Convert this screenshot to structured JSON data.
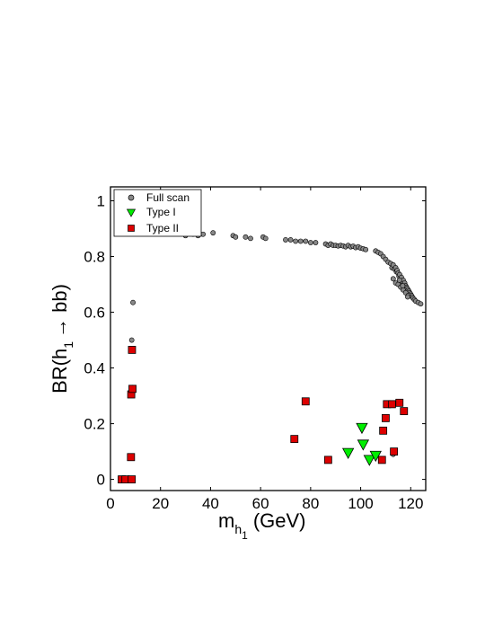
{
  "chart_data": {
    "type": "scatter",
    "xlabel": "m",
    "xlabel_sub": "h",
    "xlabel_subsub": "1",
    "xlabel_unit": "(GeV)",
    "ylabel_pre": "BR(h",
    "ylabel_sub": "1",
    "ylabel_post": "→ bb)",
    "xlim": [
      0,
      126
    ],
    "ylim": [
      -0.04,
      1.05
    ],
    "x_ticks": [
      0,
      20,
      40,
      60,
      80,
      100,
      120
    ],
    "y_ticks": [
      0,
      0.2,
      0.4,
      0.6,
      0.8,
      1
    ],
    "x_tick_labels": [
      "0",
      "20",
      "40",
      "60",
      "80",
      "100",
      "120"
    ],
    "y_tick_labels": [
      "0",
      "0.2",
      "0.4",
      "0.6",
      "0.8",
      "1"
    ],
    "grid": false,
    "legend_position": "top-left",
    "series": [
      {
        "name": "Full scan",
        "marker": "circle",
        "color": "#888888",
        "points": [
          [
            9,
            0.635
          ],
          [
            8.5,
            0.5
          ],
          [
            8.7,
            0.33
          ],
          [
            8.2,
            0.31
          ],
          [
            30,
            0.875
          ],
          [
            33,
            0.88
          ],
          [
            35,
            0.875
          ],
          [
            37,
            0.88
          ],
          [
            41,
            0.885
          ],
          [
            49,
            0.875
          ],
          [
            50,
            0.87
          ],
          [
            54,
            0.87
          ],
          [
            56,
            0.865
          ],
          [
            61,
            0.87
          ],
          [
            62,
            0.865
          ],
          [
            70,
            0.86
          ],
          [
            72,
            0.86
          ],
          [
            74,
            0.855
          ],
          [
            76,
            0.855
          ],
          [
            78,
            0.855
          ],
          [
            80,
            0.85
          ],
          [
            82,
            0.85
          ],
          [
            86,
            0.845
          ],
          [
            87,
            0.84
          ],
          [
            88,
            0.845
          ],
          [
            89,
            0.84
          ],
          [
            90,
            0.84
          ],
          [
            91,
            0.838
          ],
          [
            92,
            0.84
          ],
          [
            93,
            0.838
          ],
          [
            94,
            0.835
          ],
          [
            95,
            0.84
          ],
          [
            96,
            0.835
          ],
          [
            97,
            0.837
          ],
          [
            98,
            0.832
          ],
          [
            99,
            0.835
          ],
          [
            100,
            0.83
          ],
          [
            101,
            0.828
          ],
          [
            102,
            0.825
          ],
          [
            106,
            0.82
          ],
          [
            107,
            0.815
          ],
          [
            108,
            0.81
          ],
          [
            109,
            0.8
          ],
          [
            110,
            0.79
          ],
          [
            111,
            0.78
          ],
          [
            112,
            0.775
          ],
          [
            112.5,
            0.76
          ],
          [
            113,
            0.77
          ],
          [
            113.5,
            0.755
          ],
          [
            114,
            0.76
          ],
          [
            114.3,
            0.745
          ],
          [
            114.6,
            0.75
          ],
          [
            115,
            0.74
          ],
          [
            115.3,
            0.73
          ],
          [
            115.6,
            0.735
          ],
          [
            116,
            0.72
          ],
          [
            116.3,
            0.725
          ],
          [
            116.6,
            0.71
          ],
          [
            117,
            0.715
          ],
          [
            117.3,
            0.7
          ],
          [
            117.6,
            0.705
          ],
          [
            118,
            0.695
          ],
          [
            118.3,
            0.69
          ],
          [
            118.6,
            0.685
          ],
          [
            119,
            0.68
          ],
          [
            119.3,
            0.675
          ],
          [
            119.6,
            0.67
          ],
          [
            120,
            0.665
          ],
          [
            120.3,
            0.66
          ],
          [
            120.6,
            0.655
          ],
          [
            121,
            0.65
          ],
          [
            121.5,
            0.645
          ],
          [
            122,
            0.64
          ],
          [
            123,
            0.635
          ],
          [
            124,
            0.63
          ],
          [
            113,
            0.72
          ],
          [
            114,
            0.705
          ],
          [
            115,
            0.7
          ],
          [
            116,
            0.69
          ],
          [
            117,
            0.68
          ],
          [
            118,
            0.67
          ],
          [
            119,
            0.66
          ],
          [
            115.5,
            0.715
          ],
          [
            116.8,
            0.695
          ],
          [
            118.8,
            0.655
          ],
          [
            113,
            0.1
          ],
          [
            113,
            0.09
          ]
        ]
      },
      {
        "name": "Type I",
        "marker": "triangle-down",
        "color": "#00ee00",
        "points": [
          [
            95,
            0.095
          ],
          [
            100.5,
            0.185
          ],
          [
            101,
            0.125
          ],
          [
            103.5,
            0.07
          ],
          [
            106,
            0.085
          ]
        ]
      },
      {
        "name": "Type II",
        "marker": "square",
        "color": "#dd0000",
        "points": [
          [
            4.5,
            0.0
          ],
          [
            6,
            0.0
          ],
          [
            8.5,
            0.0
          ],
          [
            8.2,
            0.08
          ],
          [
            8.3,
            0.305
          ],
          [
            8.8,
            0.325
          ],
          [
            8.6,
            0.465
          ],
          [
            73.5,
            0.145
          ],
          [
            78,
            0.28
          ],
          [
            87,
            0.07
          ],
          [
            108.5,
            0.07
          ],
          [
            109,
            0.175
          ],
          [
            110,
            0.22
          ],
          [
            110.5,
            0.27
          ],
          [
            112.5,
            0.27
          ],
          [
            113.3,
            0.1
          ],
          [
            115.5,
            0.275
          ],
          [
            117.3,
            0.245
          ]
        ]
      }
    ]
  }
}
